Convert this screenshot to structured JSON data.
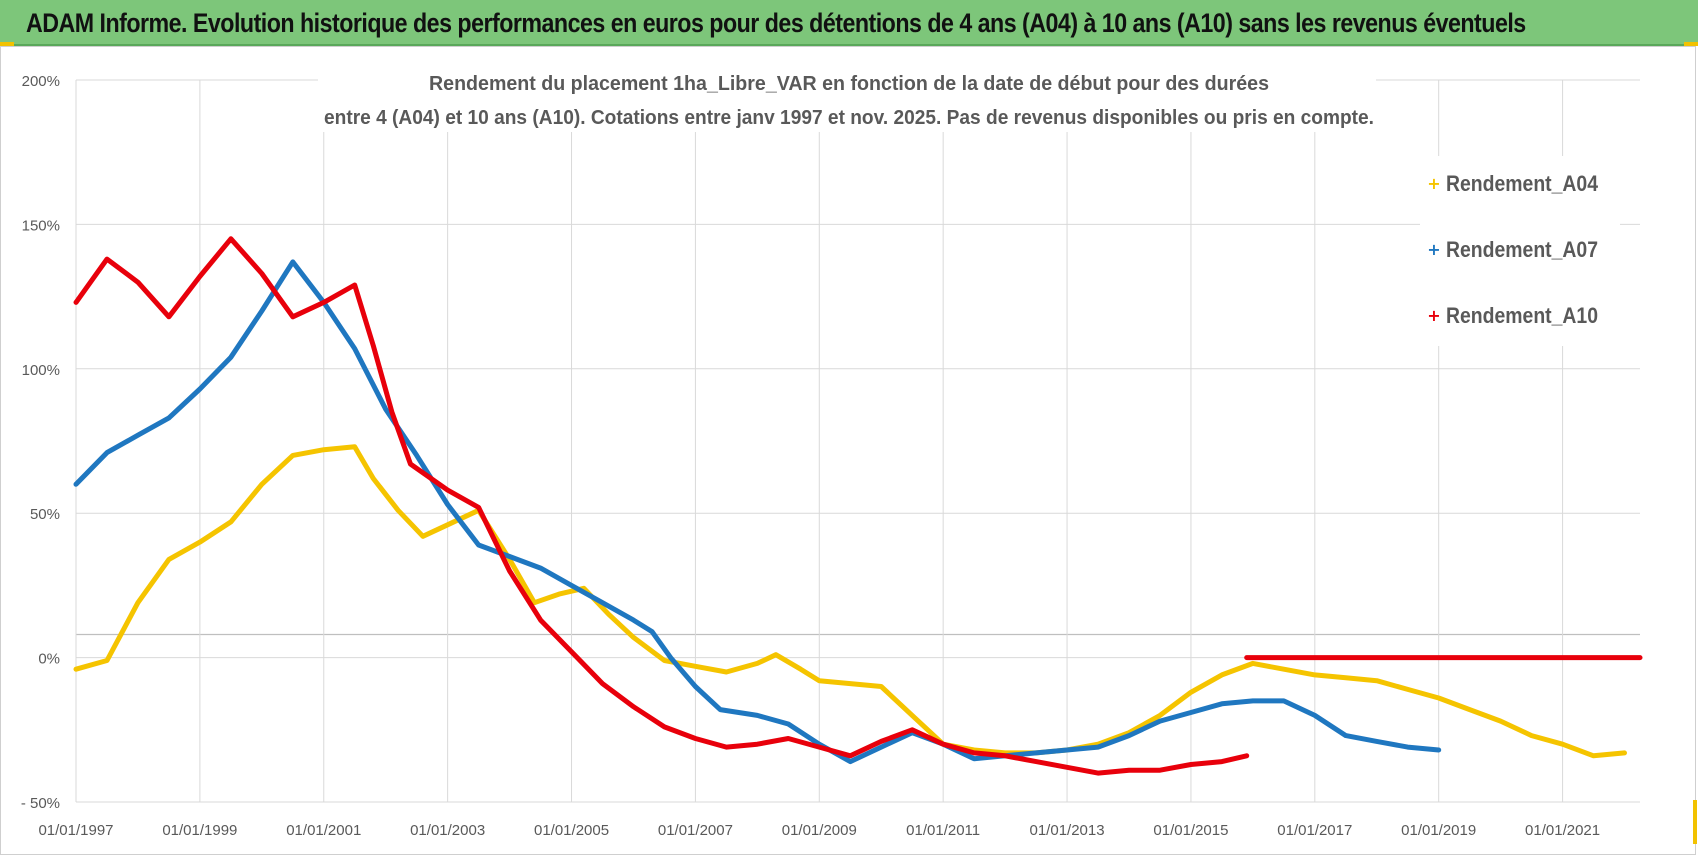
{
  "header": {
    "title": "ADAM Informe. Evolution historique des performances en euros pour des détentions de 4 ans (A04) à 10 ans (A10) sans les revenus éventuels"
  },
  "colors": {
    "header_bg": "#7dc67a",
    "A04": "#f5c400",
    "A07": "#1f77c0",
    "A10": "#e8000b",
    "grid": "#d9d9d9",
    "axis_text": "#595959"
  },
  "chart_data": {
    "type": "line",
    "title_line1": "Rendement du placement 1ha_Libre_VAR en fonction de la date de début pour des durées",
    "title_line2": "entre 4 (A04) et 10 ans (A10).  Cotations entre janv 1997 et  nov. 2025. Pas de revenus disponibles ou pris en compte.",
    "ylim": [
      -50,
      200
    ],
    "yticks": [
      -50,
      0,
      50,
      100,
      150,
      200
    ],
    "ytick_labels": [
      "- 50%",
      "0%",
      "50%",
      "100%",
      "150%",
      "200%"
    ],
    "xlim": [
      1997.0,
      2022.25
    ],
    "xticks": [
      1997,
      1999,
      2001,
      2003,
      2005,
      2007,
      2009,
      2011,
      2013,
      2015,
      2017,
      2019,
      2021
    ],
    "xtick_labels": [
      "01/01/1997",
      "01/01/1999",
      "01/01/2001",
      "01/01/2003",
      "01/01/2005",
      "01/01/2007",
      "01/01/2009",
      "01/01/2011",
      "01/01/2013",
      "01/01/2015",
      "01/01/2017",
      "01/01/2019",
      "01/01/2021"
    ],
    "legend_position": "top-right",
    "series": [
      {
        "name": "Rendement_A04",
        "color": "#f5c400",
        "points": [
          [
            1997.0,
            -4
          ],
          [
            1997.5,
            -1
          ],
          [
            1998.0,
            19
          ],
          [
            1998.5,
            34
          ],
          [
            1999.0,
            40
          ],
          [
            1999.5,
            47
          ],
          [
            2000.0,
            60
          ],
          [
            2000.5,
            70
          ],
          [
            2001.0,
            72
          ],
          [
            2001.5,
            73
          ],
          [
            2001.8,
            62
          ],
          [
            2002.2,
            51
          ],
          [
            2002.6,
            42
          ],
          [
            2003.0,
            46
          ],
          [
            2003.5,
            51
          ],
          [
            2004.0,
            34
          ],
          [
            2004.4,
            19
          ],
          [
            2004.8,
            22
          ],
          [
            2005.2,
            24
          ],
          [
            2005.6,
            15
          ],
          [
            2006.0,
            7
          ],
          [
            2006.5,
            -1
          ],
          [
            2007.0,
            -3
          ],
          [
            2007.5,
            -5
          ],
          [
            2008.0,
            -2
          ],
          [
            2008.3,
            1
          ],
          [
            2008.7,
            -4
          ],
          [
            2009.0,
            -8
          ],
          [
            2009.5,
            -9
          ],
          [
            2010.0,
            -10
          ],
          [
            2010.5,
            -20
          ],
          [
            2011.0,
            -30
          ],
          [
            2011.5,
            -32
          ],
          [
            2012.0,
            -33
          ],
          [
            2012.5,
            -33
          ],
          [
            2013.0,
            -32
          ],
          [
            2013.5,
            -30
          ],
          [
            2014.0,
            -26
          ],
          [
            2014.5,
            -20
          ],
          [
            2015.0,
            -12
          ],
          [
            2015.5,
            -6
          ],
          [
            2016.0,
            -2
          ],
          [
            2016.5,
            -4
          ],
          [
            2017.0,
            -6
          ],
          [
            2017.5,
            -7
          ],
          [
            2018.0,
            -8
          ],
          [
            2018.5,
            -11
          ],
          [
            2019.0,
            -14
          ],
          [
            2019.5,
            -18
          ],
          [
            2020.0,
            -22
          ],
          [
            2020.5,
            -27
          ],
          [
            2021.0,
            -30
          ],
          [
            2021.5,
            -34
          ],
          [
            2022.0,
            -33
          ]
        ]
      },
      {
        "name": "Rendement_A07",
        "color": "#1f77c0",
        "points": [
          [
            1997.0,
            60
          ],
          [
            1997.5,
            71
          ],
          [
            1998.0,
            77
          ],
          [
            1998.5,
            83
          ],
          [
            1999.0,
            93
          ],
          [
            1999.5,
            104
          ],
          [
            2000.0,
            120
          ],
          [
            2000.5,
            137
          ],
          [
            2001.0,
            123
          ],
          [
            2001.5,
            107
          ],
          [
            2002.0,
            86
          ],
          [
            2002.5,
            70
          ],
          [
            2003.0,
            53
          ],
          [
            2003.5,
            39
          ],
          [
            2004.0,
            35
          ],
          [
            2004.5,
            31
          ],
          [
            2005.0,
            25
          ],
          [
            2005.5,
            19
          ],
          [
            2006.0,
            13
          ],
          [
            2006.3,
            9
          ],
          [
            2006.6,
            0
          ],
          [
            2007.0,
            -10
          ],
          [
            2007.4,
            -18
          ],
          [
            2008.0,
            -20
          ],
          [
            2008.5,
            -23
          ],
          [
            2009.0,
            -30
          ],
          [
            2009.5,
            -36
          ],
          [
            2010.0,
            -31
          ],
          [
            2010.5,
            -26
          ],
          [
            2011.0,
            -30
          ],
          [
            2011.5,
            -35
          ],
          [
            2012.0,
            -34
          ],
          [
            2012.5,
            -33
          ],
          [
            2013.0,
            -32
          ],
          [
            2013.5,
            -31
          ],
          [
            2014.0,
            -27
          ],
          [
            2014.5,
            -22
          ],
          [
            2015.0,
            -19
          ],
          [
            2015.5,
            -16
          ],
          [
            2016.0,
            -15
          ],
          [
            2016.5,
            -15
          ],
          [
            2017.0,
            -20
          ],
          [
            2017.5,
            -27
          ],
          [
            2018.0,
            -29
          ],
          [
            2018.5,
            -31
          ],
          [
            2019.0,
            -32
          ]
        ]
      },
      {
        "name": "Rendement_A10",
        "color": "#e8000b",
        "points": [
          [
            1997.0,
            123
          ],
          [
            1997.5,
            138
          ],
          [
            1998.0,
            130
          ],
          [
            1998.5,
            118
          ],
          [
            1999.0,
            132
          ],
          [
            1999.5,
            145
          ],
          [
            2000.0,
            133
          ],
          [
            2000.5,
            118
          ],
          [
            2001.0,
            123
          ],
          [
            2001.5,
            129
          ],
          [
            2001.8,
            108
          ],
          [
            2002.1,
            85
          ],
          [
            2002.4,
            67
          ],
          [
            2003.0,
            58
          ],
          [
            2003.5,
            52
          ],
          [
            2004.0,
            30
          ],
          [
            2004.5,
            13
          ],
          [
            2005.0,
            2
          ],
          [
            2005.5,
            -9
          ],
          [
            2006.0,
            -17
          ],
          [
            2006.5,
            -24
          ],
          [
            2007.0,
            -28
          ],
          [
            2007.5,
            -31
          ],
          [
            2008.0,
            -30
          ],
          [
            2008.5,
            -28
          ],
          [
            2009.0,
            -31
          ],
          [
            2009.5,
            -34
          ],
          [
            2010.0,
            -29
          ],
          [
            2010.5,
            -25
          ],
          [
            2011.0,
            -30
          ],
          [
            2011.5,
            -33
          ],
          [
            2012.0,
            -34
          ],
          [
            2012.5,
            -36
          ],
          [
            2013.0,
            -38
          ],
          [
            2013.5,
            -40
          ],
          [
            2014.0,
            -39
          ],
          [
            2014.5,
            -39
          ],
          [
            2015.0,
            -37
          ],
          [
            2015.5,
            -36
          ],
          [
            2015.9,
            -34
          ]
        ]
      },
      {
        "name": "Rendement_A10",
        "color": "#e8000b",
        "points": [
          [
            2015.9,
            0
          ],
          [
            2016.5,
            0
          ],
          [
            2017.0,
            0
          ],
          [
            2018.0,
            0
          ],
          [
            2019.0,
            0
          ],
          [
            2020.0,
            0
          ],
          [
            2021.0,
            0
          ],
          [
            2022.0,
            0
          ],
          [
            2022.25,
            0
          ]
        ]
      }
    ],
    "legend": [
      {
        "label": "Rendement_A04",
        "color": "#f5c400"
      },
      {
        "label": "Rendement_A07",
        "color": "#1f77c0"
      },
      {
        "label": "Rendement_A10",
        "color": "#e8000b"
      }
    ]
  }
}
